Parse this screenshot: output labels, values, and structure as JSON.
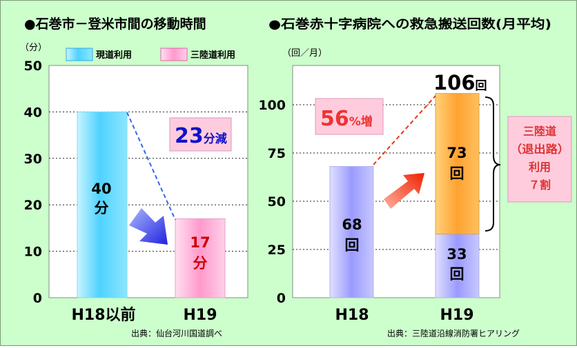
{
  "chart_data": [
    {
      "type": "bar",
      "title": "●石巻市－登米市間の移動時間",
      "y_unit": "（分）",
      "ylim": [
        0,
        50
      ],
      "yticks": [
        0,
        10,
        20,
        30,
        40,
        50
      ],
      "grid": true,
      "legend": [
        "現道利用",
        "三陸道利用"
      ],
      "legend_position": "top",
      "categories": [
        "H18以前",
        "H19"
      ],
      "series": [
        {
          "name": "現道利用",
          "values": [
            40,
            null
          ],
          "color": "#33ccff"
        },
        {
          "name": "三陸道利用",
          "values": [
            null,
            17
          ],
          "color": "#ff99cc"
        }
      ],
      "bar_labels": [
        "40 分",
        "17 分"
      ],
      "callout": {
        "number": "23",
        "unit": "分減",
        "color": "#1111cc"
      }
    },
    {
      "type": "bar",
      "stacked": true,
      "title": "●石巻赤十字病院への救急搬送回数(月平均)",
      "y_unit": "（回／月）",
      "ylim": [
        0,
        120
      ],
      "yticks": [
        0,
        25,
        50,
        75,
        100
      ],
      "grid": true,
      "categories": [
        "H18",
        "H19"
      ],
      "series": [
        {
          "values": [
            68,
            33
          ],
          "color": "#9999ff"
        },
        {
          "values": [
            0,
            73
          ],
          "color": "#ffaa33"
        }
      ],
      "bar_labels": {
        "h18": "68 回",
        "h19_lower": "33 回",
        "h19_upper": "73 回"
      },
      "total_label": {
        "number": "106",
        "unit": "回"
      },
      "callout": {
        "number": "56",
        "unit": "%増",
        "color": "#ee3333"
      },
      "bracket_note": [
        "三陸道",
        "（退出路）",
        "利用",
        "７割"
      ]
    }
  ],
  "sources": {
    "left": "出典：仙台河川国道調べ",
    "right": "出典：三陸道沿線消防署ヒアリング"
  }
}
